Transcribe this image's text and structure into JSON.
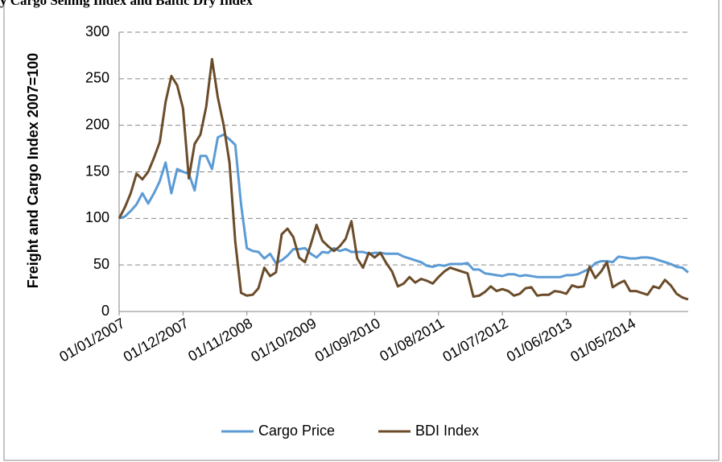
{
  "chart_data": {
    "type": "line",
    "title": "y Cargo Selling Index and Baltic Dry Index",
    "y_label": "Freight and Cargo Index 2007=100",
    "categories": [
      "01/01/2007",
      null,
      null,
      null,
      null,
      null,
      null,
      null,
      null,
      null,
      null,
      "01/12/2007",
      null,
      null,
      null,
      null,
      null,
      null,
      null,
      null,
      null,
      null,
      "01/11/2008",
      null,
      null,
      null,
      null,
      null,
      null,
      null,
      null,
      null,
      null,
      "01/10/2009",
      null,
      null,
      null,
      null,
      null,
      null,
      null,
      null,
      null,
      null,
      "01/09/2010",
      null,
      null,
      null,
      null,
      null,
      null,
      null,
      null,
      null,
      null,
      "01/08/2011",
      null,
      null,
      null,
      null,
      null,
      null,
      null,
      null,
      null,
      null,
      "01/07/2012",
      null,
      null,
      null,
      null,
      null,
      null,
      null,
      null,
      null,
      null,
      "01/06/2013",
      null,
      null,
      null,
      null,
      null,
      null,
      null,
      null,
      null,
      null,
      "01/05/2014",
      null,
      null,
      null,
      null,
      null,
      null,
      null,
      null,
      null,
      null
    ],
    "series": [
      {
        "name": "Cargo Price",
        "color": "#5b9bd5",
        "values": [
          100,
          102,
          108,
          115,
          127,
          116,
          127,
          140,
          160,
          127,
          153,
          150,
          148,
          130,
          167,
          167,
          153,
          187,
          190,
          185,
          179,
          115,
          68,
          65,
          64,
          57,
          62,
          52,
          55,
          60,
          67,
          67,
          68,
          62,
          58,
          64,
          63,
          68,
          65,
          67,
          64,
          64,
          64,
          62,
          63,
          63,
          62,
          62,
          62,
          59,
          57,
          55,
          53,
          49,
          48,
          50,
          49,
          51,
          51,
          51,
          52,
          45,
          45,
          41,
          40,
          39,
          38,
          40,
          40,
          38,
          39,
          38,
          37,
          37,
          37,
          37,
          37,
          39,
          39,
          40,
          43,
          46,
          52,
          54,
          54,
          53,
          59,
          58,
          57,
          57,
          58,
          58,
          57,
          55,
          53,
          51,
          48,
          47,
          42
        ]
      },
      {
        "name": "BDI Index",
        "color": "#6b4c2a",
        "values": [
          100,
          112,
          127,
          148,
          142,
          150,
          165,
          182,
          225,
          253,
          243,
          218,
          143,
          180,
          190,
          220,
          271,
          230,
          200,
          160,
          75,
          20,
          17,
          18,
          25,
          47,
          38,
          42,
          83,
          89,
          80,
          58,
          53,
          72,
          93,
          76,
          70,
          65,
          70,
          78,
          97,
          57,
          47,
          63,
          58,
          63,
          52,
          43,
          27,
          30,
          37,
          31,
          35,
          33,
          30,
          37,
          43,
          47,
          45,
          43,
          41,
          16,
          17,
          21,
          27,
          22,
          24,
          22,
          17,
          19,
          25,
          26,
          17,
          18,
          18,
          22,
          21,
          19,
          28,
          26,
          27,
          48,
          36,
          43,
          53,
          26,
          30,
          33,
          22,
          22,
          20,
          18,
          27,
          25,
          34,
          28,
          19,
          15,
          13
        ]
      }
    ],
    "ylim": [
      0,
      300
    ],
    "yticks": [
      0,
      50,
      100,
      150,
      200,
      250,
      300
    ],
    "grid": true,
    "legend": "bottom"
  }
}
